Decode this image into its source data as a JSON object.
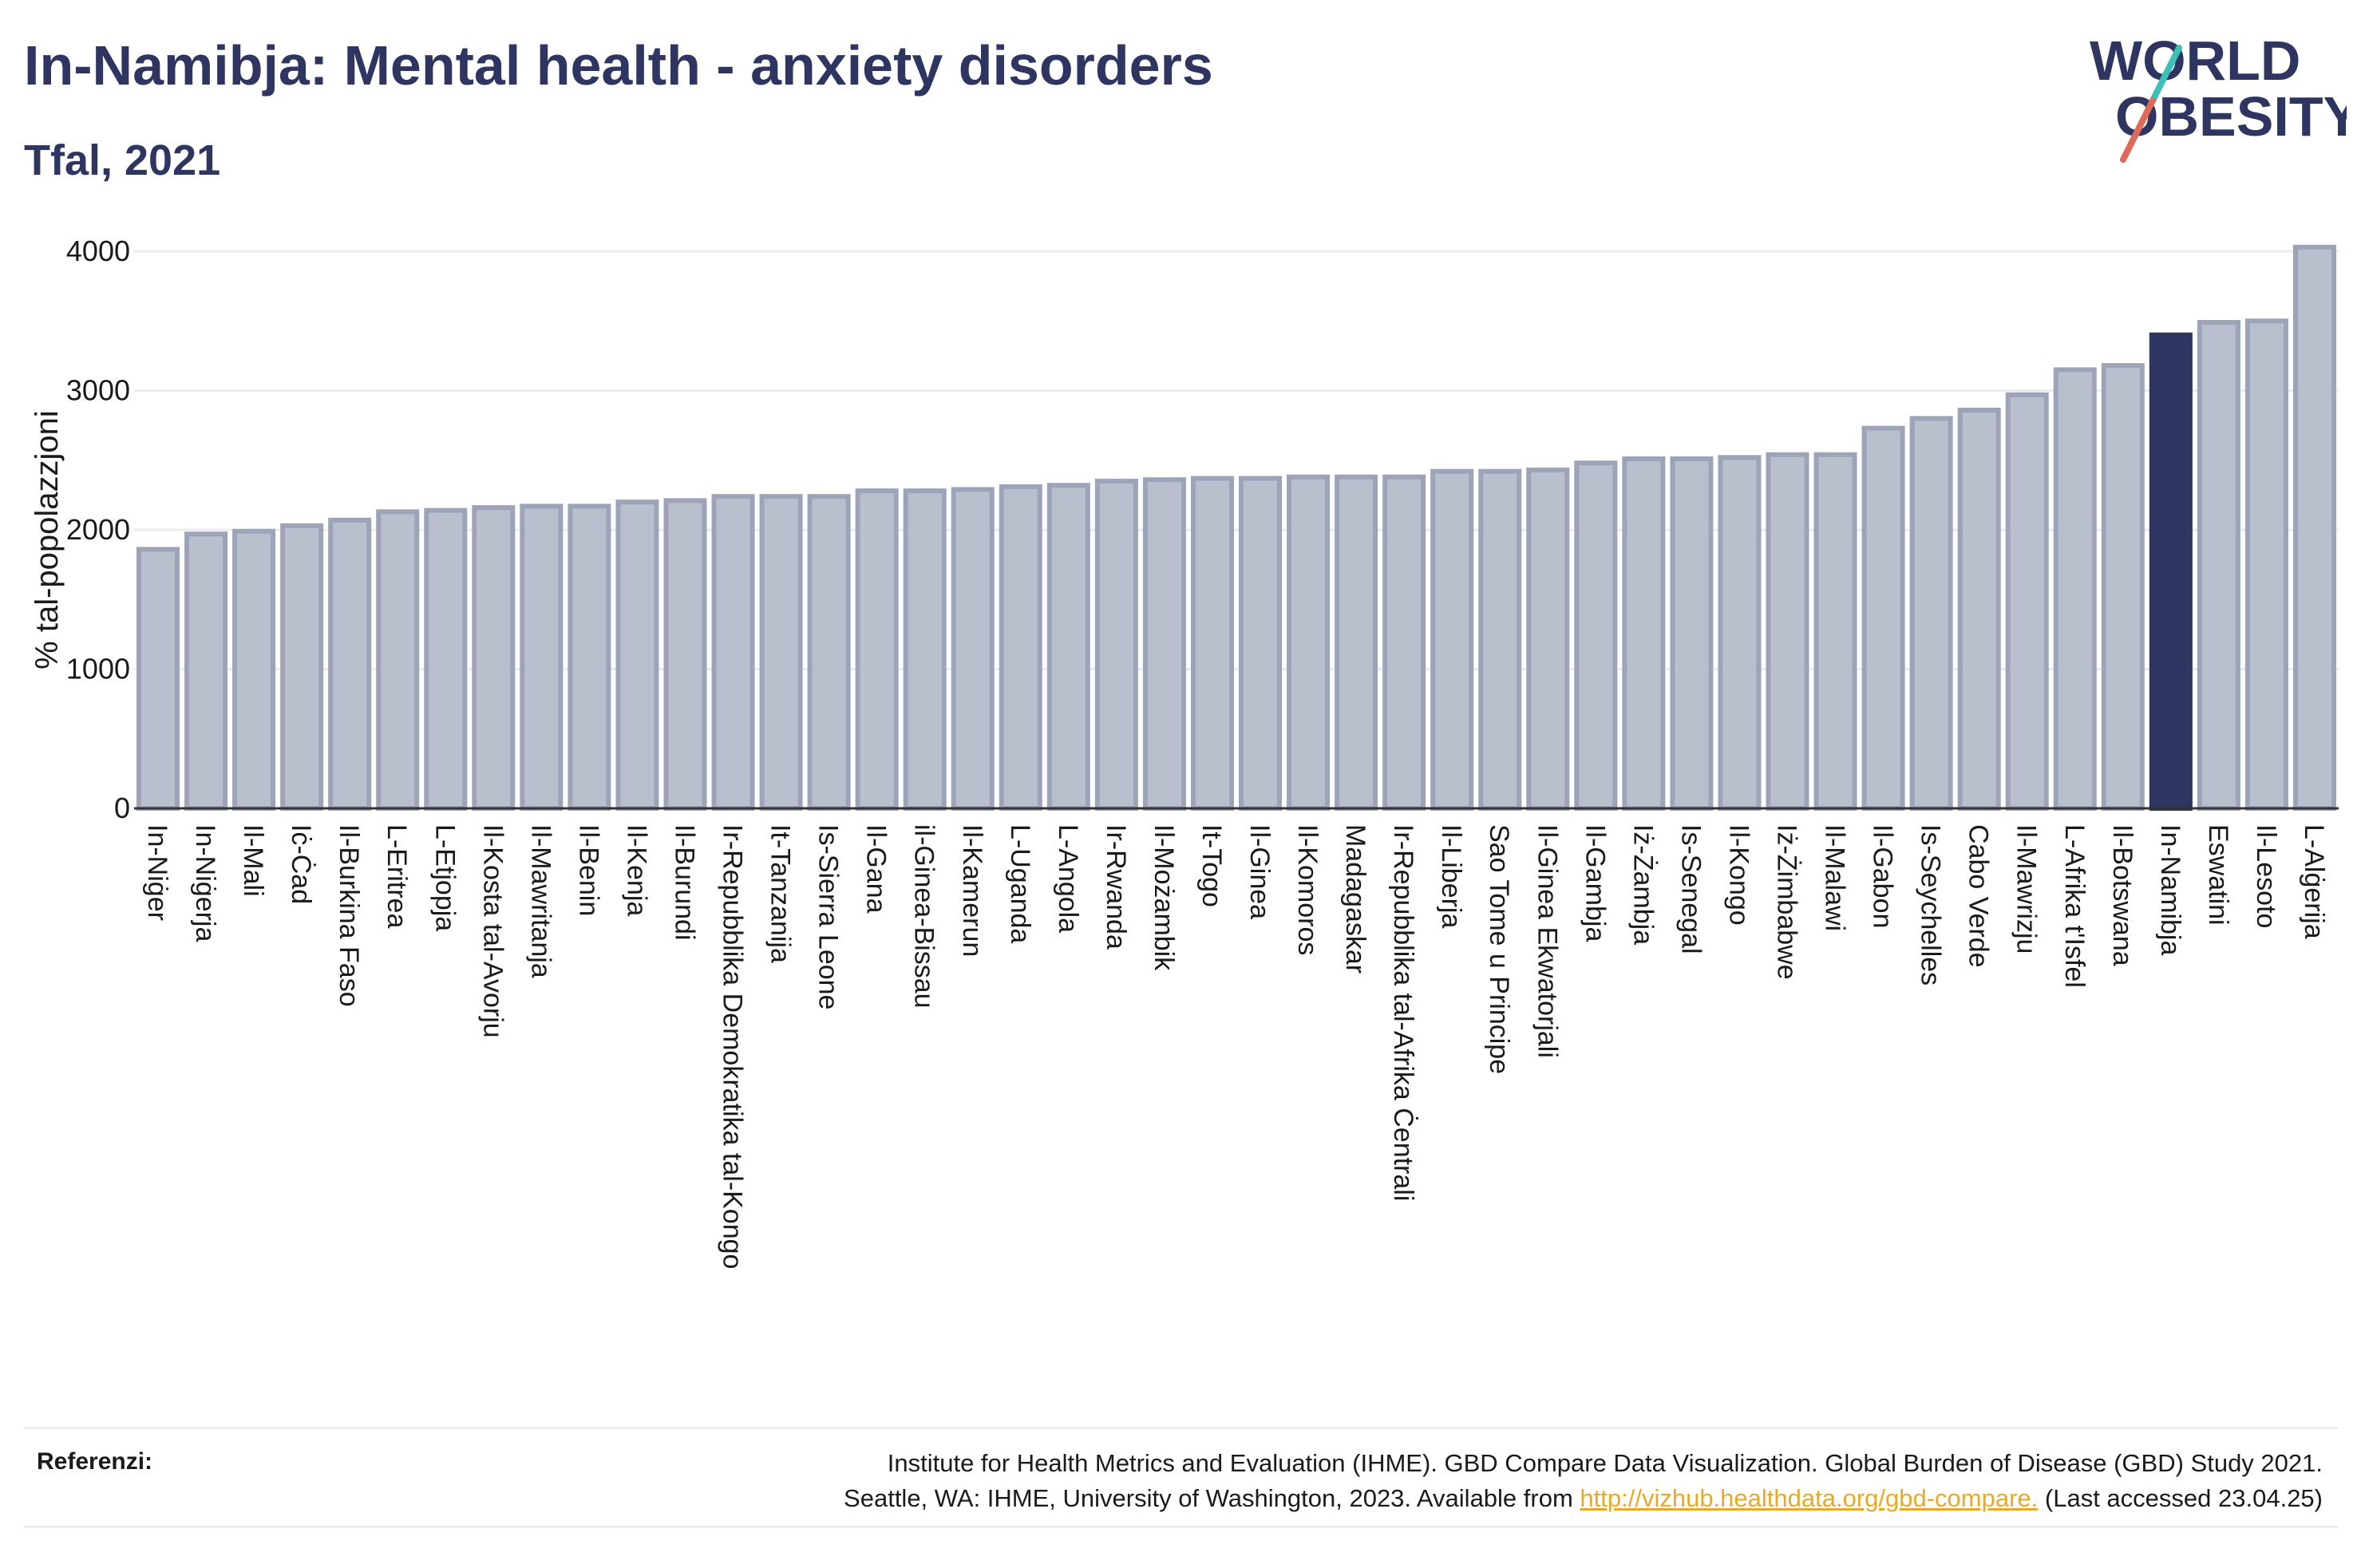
{
  "header": {
    "title": "In-Namibja: Mental health - anxiety disorders",
    "subtitle": "Tfal, 2021"
  },
  "logo": {
    "line1": "WORLD",
    "line2": "OBESITY",
    "colors": {
      "text": "#2d3560",
      "slash_teal": "#3bbfb8",
      "slash_red": "#e06a5a"
    }
  },
  "chart_data": {
    "type": "bar",
    "title": "In-Namibja: Mental health - anxiety disorders",
    "subtitle": "Tfal, 2021",
    "xlabel": "",
    "ylabel": "% tal-popolazzjoni",
    "ylim": [
      0,
      4000
    ],
    "yticks": [
      0,
      1000,
      2000,
      3000,
      4000
    ],
    "grid": "horizontal",
    "highlight": "In-Namibja",
    "colors": {
      "bar": "#babfce",
      "bar_edge": "#9ea4b8",
      "highlight": "#2d3560",
      "grid": "#ebebeb",
      "axis": "#333333"
    },
    "categories": [
      "In-Niġer",
      "In-Niġerja",
      "Il-Mali",
      "Iċ-Ċad",
      "Il-Burkina Faso",
      "L-Eritrea",
      "L-Etjopja",
      "Il-Kosta tal-Avorju",
      "Il-Mawritanja",
      "Il-Benin",
      "Il-Kenja",
      "Il-Burundi",
      "Ir-Repubblika Demokratika tal-Kongo",
      "It-Tanzanija",
      "Is-Sierra Leone",
      "Il-Gana",
      "il-Ginea-Bissau",
      "Il-Kamerun",
      "L-Uganda",
      "L-Angola",
      "Ir-Rwanda",
      "Il-Możambik",
      "It-Togo",
      "Il-Ginea",
      "Il-Komoros",
      "Madagaskar",
      "Ir-Repubblika tal-Afrika Ċentrali",
      "Il-Liberja",
      "Sao Tome u Principe",
      "Il-Ginea Ekwatorjali",
      "Il-Gambja",
      "Iż-Żambja",
      "Is-Senegal",
      "Il-Kongo",
      "Iż-Żimbabwe",
      "Il-Malawi",
      "Il-Gabon",
      "Is-Seychelles",
      "Cabo Verde",
      "Il-Mawrizju",
      "L-Afrika t'Isfel",
      "Il-Botswana",
      "In-Namibja",
      "Eswatini",
      "Il-Lesoto",
      "L-Alġerija"
    ],
    "values": [
      1860,
      1970,
      1990,
      2030,
      2070,
      2130,
      2140,
      2160,
      2170,
      2170,
      2200,
      2210,
      2240,
      2240,
      2240,
      2280,
      2280,
      2290,
      2310,
      2320,
      2350,
      2360,
      2370,
      2370,
      2380,
      2380,
      2380,
      2420,
      2420,
      2430,
      2480,
      2510,
      2510,
      2520,
      2540,
      2540,
      2730,
      2800,
      2860,
      2970,
      3150,
      3180,
      3400,
      3490,
      3500,
      4030
    ]
  },
  "references": {
    "label": "Referenzi:",
    "line1": "Institute for Health Metrics and Evaluation (IHME). GBD Compare Data Visualization. Global Burden of Disease (GBD) Study 2021.",
    "line2_before": "Seattle, WA: IHME, University of Washington, 2023. Available from ",
    "link": "http://vizhub.healthdata.org/gbd-compare.",
    "line2_after": " (Last accessed 23.04.25)"
  }
}
